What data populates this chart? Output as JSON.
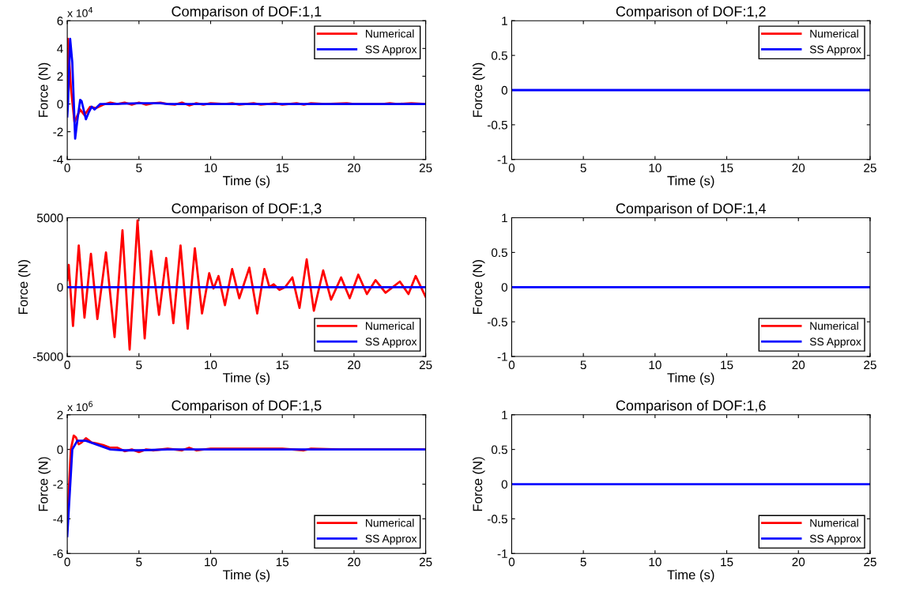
{
  "chart_data": [
    {
      "type": "line",
      "title": "Comparison of DOF:1,1",
      "xlabel": "Time (s)",
      "ylabel": "Force (N)",
      "annotations": [
        "x 10$^{4}$"
      ],
      "xlim": [
        0,
        25
      ],
      "xticks": [
        0,
        5,
        10,
        15,
        20,
        25
      ],
      "ylim": [
        -4,
        6
      ],
      "yticks": [
        -4,
        -2,
        0,
        2,
        4,
        6
      ],
      "legend": "top right",
      "grid": false,
      "line_style": "solid",
      "marker": "none",
      "series": [
        {
          "name": "Numerical",
          "color": "#ff0000",
          "x": [
            0,
            0.05,
            0.25,
            0.5,
            0.9,
            1.2,
            1.6,
            2.0,
            2.5,
            3,
            3.5,
            4,
            4.5,
            5,
            5.5,
            6,
            6.5,
            7,
            7.5,
            8,
            8.5,
            9,
            9.5,
            10,
            11,
            11.5,
            12,
            13,
            13.5,
            14.5,
            15,
            16,
            16.5,
            17,
            18,
            19.5,
            20,
            22,
            22.5,
            23,
            24,
            25
          ],
          "values": [
            0,
            4.7,
            1.2,
            -1.3,
            -0.4,
            -0.8,
            -0.2,
            -0.3,
            -0.05,
            0.1,
            0,
            0.1,
            -0.05,
            0.1,
            -0.05,
            0.05,
            0.1,
            0,
            -0.05,
            0.1,
            -0.1,
            0.05,
            -0.05,
            0.05,
            0,
            0.05,
            -0.05,
            0.05,
            -0.05,
            0.05,
            -0.05,
            0.05,
            -0.05,
            0.05,
            0,
            0.05,
            0,
            0,
            0.05,
            0,
            0.05,
            0
          ]
        },
        {
          "name": "SS Approx",
          "color": "#0000ff",
          "x": [
            0,
            0.05,
            0.2,
            0.35,
            0.55,
            0.7,
            0.9,
            1.0,
            1.3,
            1.5,
            1.7,
            1.9,
            2.3,
            3,
            5,
            6.5,
            7,
            25
          ],
          "values": [
            -0.9,
            0,
            4.7,
            3.0,
            -2.5,
            -1.2,
            0.3,
            0.2,
            -1.1,
            -0.6,
            -0.2,
            -0.4,
            0,
            0,
            0.05,
            0.05,
            0,
            0
          ]
        }
      ]
    },
    {
      "type": "line",
      "title": "Comparison of DOF:1,2",
      "xlabel": "Time (s)",
      "ylabel": "Force (N)",
      "xlim": [
        0,
        25
      ],
      "xticks": [
        0,
        5,
        10,
        15,
        20,
        25
      ],
      "ylim": [
        -1,
        1
      ],
      "yticks": [
        -1,
        -0.5,
        0,
        0.5,
        1
      ],
      "legend": "top right",
      "grid": false,
      "line_style": "solid",
      "marker": "none",
      "series": [
        {
          "name": "Numerical",
          "color": "#ff0000"
        },
        {
          "name": "SS Approx",
          "color": "#0000ff",
          "x": [
            0,
            25
          ],
          "values": [
            0,
            0
          ]
        }
      ]
    },
    {
      "type": "line",
      "title": "Comparison of DOF:1,3",
      "xlabel": "Time (s)",
      "ylabel": "Force (N)",
      "xlim": [
        0,
        25
      ],
      "xticks": [
        0,
        5,
        10,
        15,
        20,
        25
      ],
      "ylim": [
        -5000,
        5000
      ],
      "yticks": [
        -5000,
        0,
        5000
      ],
      "legend": "bottom right",
      "grid": false,
      "line_style": "solid",
      "marker": "none",
      "series": [
        {
          "name": "Numerical",
          "color": "#ff0000",
          "x": [
            0,
            0.1,
            0.4,
            0.8,
            1.2,
            1.65,
            2.1,
            2.7,
            3.3,
            3.85,
            4.35,
            4.9,
            5.4,
            5.85,
            6.4,
            6.9,
            7.4,
            7.9,
            8.4,
            8.9,
            9.4,
            9.9,
            10.2,
            10.55,
            11.0,
            11.5,
            12.0,
            12.7,
            13.25,
            13.75,
            14.1,
            14.4,
            14.8,
            15.2,
            15.7,
            16.2,
            16.7,
            17.2,
            17.85,
            18.4,
            19.1,
            19.7,
            20.3,
            20.9,
            21.5,
            22.2,
            23.2,
            23.8,
            24.3,
            25
          ],
          "values": [
            500,
            1600,
            -2800,
            3000,
            -2200,
            2400,
            -2300,
            2500,
            -3600,
            4100,
            -4500,
            4800,
            -3700,
            2600,
            -2000,
            2100,
            -2600,
            3000,
            -3000,
            2800,
            -1900,
            1000,
            -100,
            800,
            -1300,
            1300,
            -800,
            1400,
            -1900,
            1300,
            0,
            200,
            -200,
            0,
            700,
            -1500,
            2000,
            -1700,
            1200,
            -900,
            700,
            -800,
            900,
            -500,
            500,
            -400,
            400,
            -500,
            800,
            -700
          ]
        },
        {
          "name": "SS Approx",
          "color": "#0000ff",
          "x": [
            0,
            25
          ],
          "values": [
            0,
            0
          ]
        }
      ]
    },
    {
      "type": "line",
      "title": "Comparison of DOF:1,4",
      "xlabel": "Time (s)",
      "ylabel": "Force (N)",
      "xlim": [
        0,
        25
      ],
      "xticks": [
        0,
        5,
        10,
        15,
        20,
        25
      ],
      "ylim": [
        -1,
        1
      ],
      "yticks": [
        -1,
        -0.5,
        0,
        0.5,
        1
      ],
      "legend": "bottom right",
      "grid": false,
      "line_style": "solid",
      "marker": "none",
      "series": [
        {
          "name": "Numerical",
          "color": "#ff0000"
        },
        {
          "name": "SS Approx",
          "color": "#0000ff",
          "x": [
            0,
            25
          ],
          "values": [
            0,
            0
          ]
        }
      ]
    },
    {
      "type": "line",
      "title": "Comparison of DOF:1,5",
      "xlabel": "Time (s)",
      "ylabel": "Force (N)",
      "annotations": [
        "x 10$^{6}$"
      ],
      "xlim": [
        0,
        25
      ],
      "xticks": [
        0,
        5,
        10,
        15,
        20,
        25
      ],
      "ylim": [
        -6,
        2
      ],
      "yticks": [
        -6,
        -4,
        -2,
        0,
        2
      ],
      "legend": "bottom right",
      "grid": false,
      "line_style": "solid",
      "marker": "none",
      "series": [
        {
          "name": "Numerical",
          "color": "#ff0000",
          "x": [
            0,
            0.1,
            0.25,
            0.45,
            0.6,
            0.8,
            1.0,
            1.3,
            1.7,
            2.0,
            2.5,
            3,
            3.5,
            4,
            4.5,
            5,
            5.5,
            6,
            7,
            8,
            8.5,
            9,
            10,
            12,
            14,
            15,
            16.5,
            17,
            19,
            25
          ],
          "values": [
            -4,
            -2.5,
            0,
            0.8,
            0.7,
            0.3,
            0.4,
            0.65,
            0.4,
            0.35,
            0.25,
            0.1,
            0.1,
            -0.1,
            0,
            -0.15,
            0,
            -0.05,
            0.05,
            -0.05,
            0.1,
            -0.05,
            0.05,
            0.05,
            0.05,
            0.05,
            -0.05,
            0.05,
            0,
            0
          ]
        },
        {
          "name": "SS Approx",
          "color": "#0000ff",
          "x": [
            0,
            0.35,
            0.7,
            1.3,
            2,
            3,
            4,
            5,
            7,
            25
          ],
          "values": [
            -5,
            0,
            0.5,
            0.5,
            0.3,
            0,
            -0.05,
            -0.05,
            0,
            0
          ]
        }
      ]
    },
    {
      "type": "line",
      "title": "Comparison of DOF:1,6",
      "xlabel": "Time (s)",
      "ylabel": "Force (N)",
      "xlim": [
        0,
        25
      ],
      "xticks": [
        0,
        5,
        10,
        15,
        20,
        25
      ],
      "ylim": [
        -1,
        1
      ],
      "yticks": [
        -1,
        -0.5,
        0,
        0.5,
        1
      ],
      "legend": "bottom right",
      "grid": false,
      "line_style": "solid",
      "marker": "none",
      "series": [
        {
          "name": "Numerical",
          "color": "#ff0000"
        },
        {
          "name": "SS Approx",
          "color": "#0000ff",
          "x": [
            0,
            25
          ],
          "values": [
            0,
            0
          ]
        }
      ]
    }
  ]
}
